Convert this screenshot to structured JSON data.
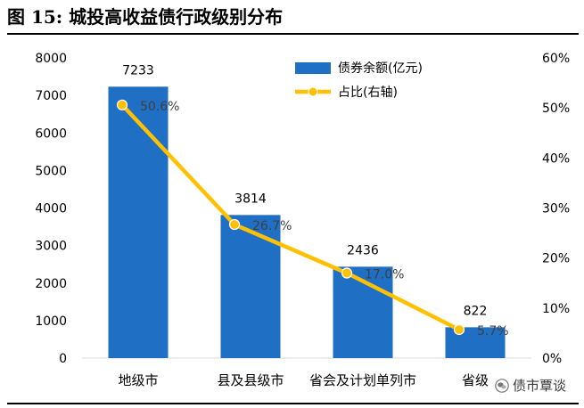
{
  "figure": {
    "title": "图 15:  城投高收益债行政级别分布"
  },
  "watermark": {
    "text": "债市覃谈",
    "icon": "wechat-icon"
  },
  "chart_data": {
    "type": "bar",
    "categories": [
      "地级市",
      "县及县级市",
      "省会及计划单列市",
      "省级"
    ],
    "series": [
      {
        "name": "债券余额(亿元)",
        "type": "bar",
        "axis": "left",
        "values": [
          7233,
          3814,
          2436,
          822
        ],
        "labels": [
          "7233",
          "3814",
          "2436",
          "822"
        ],
        "color": "#1f6fc5"
      },
      {
        "name": "占比(右轴)",
        "type": "line",
        "axis": "right",
        "values": [
          50.6,
          26.7,
          17.0,
          5.7
        ],
        "labels": [
          "50.6%",
          "26.7%",
          "17.0%",
          "5.7%"
        ],
        "color": "#ffc000"
      }
    ],
    "y_left": {
      "min": 0,
      "max": 8000,
      "ticks": [
        "0",
        "1000",
        "2000",
        "3000",
        "4000",
        "5000",
        "6000",
        "7000",
        "8000"
      ]
    },
    "y_right": {
      "min": 0,
      "max": 60,
      "ticks": [
        "0%",
        "10%",
        "20%",
        "30%",
        "40%",
        "50%",
        "60%"
      ]
    },
    "grid": false,
    "legend_position": "top-right"
  }
}
